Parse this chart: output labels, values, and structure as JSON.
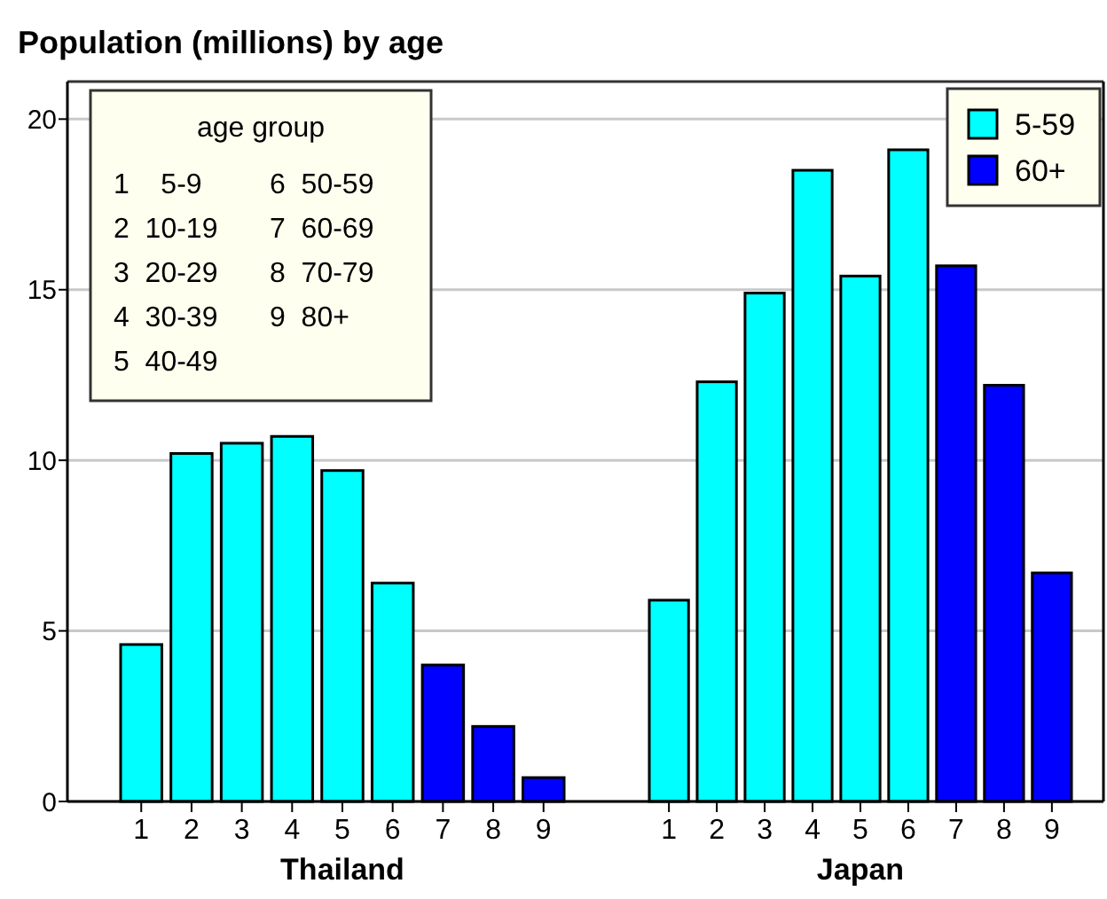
{
  "chart_data": [
    {
      "type": "bar",
      "title": "Population (millions) by age",
      "xlabel": "Thailand",
      "categories": [
        "1",
        "2",
        "3",
        "4",
        "5",
        "6",
        "7",
        "8",
        "9"
      ],
      "series": [
        {
          "color": "#00ffff",
          "values": [
            4.6,
            10.2,
            10.5,
            10.7,
            9.7,
            6.4,
            null,
            null,
            null
          ]
        },
        {
          "color": "#0000ff",
          "values": [
            null,
            null,
            null,
            null,
            null,
            null,
            4.0,
            2.2,
            0.7
          ]
        }
      ],
      "ylim": [
        0,
        21.1
      ],
      "yticks": [
        0,
        5,
        10,
        15,
        20
      ],
      "grid": "y",
      "legend": false,
      "annotations": [
        "age group",
        "1    5-9",
        "2  10-19",
        "3  20-29",
        "4  30-39",
        "5  40-49",
        "6  50-59",
        "7  60-69",
        "8  70-79",
        "9  80+"
      ]
    },
    {
      "type": "bar",
      "xlabel": "Japan",
      "categories": [
        "1",
        "2",
        "3",
        "4",
        "5",
        "6",
        "7",
        "8",
        "9"
      ],
      "series": [
        {
          "name": "5-59",
          "color": "#00ffff",
          "values": [
            5.9,
            12.3,
            14.9,
            18.5,
            15.4,
            19.1,
            null,
            null,
            null
          ]
        },
        {
          "name": "60+",
          "color": "#0000ff",
          "values": [
            null,
            null,
            null,
            null,
            null,
            null,
            15.7,
            12.2,
            6.7
          ]
        }
      ],
      "ylim": [
        0,
        21.1
      ],
      "yticks": [
        0,
        5,
        10,
        15,
        20
      ],
      "grid": "y",
      "legend": "top right",
      "tick_labels": "x"
    }
  ]
}
